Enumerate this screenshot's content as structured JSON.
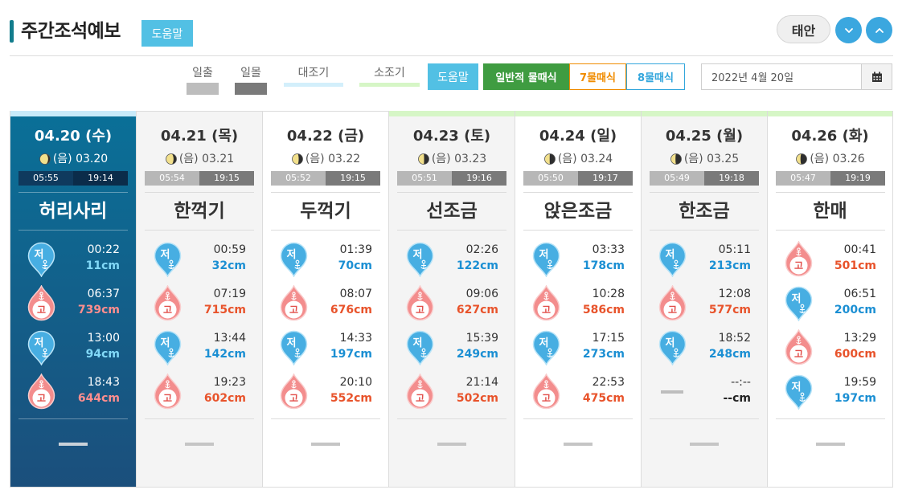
{
  "header": {
    "title": "주간조석예보",
    "help_label": "도움말",
    "region": "태안"
  },
  "colors": {
    "accent": "#127c8c",
    "help_button": "#52c0e4",
    "circle_button": "#3ba7df",
    "selected_column_top": "#0a7098",
    "selected_column_bottom": "#1b4f7c",
    "low_tide": "#1b8fd3",
    "high_tide": "#e8532b",
    "low_tide_selected": "#82d9f8",
    "high_tide_selected": "#ff8e8e"
  },
  "legend": [
    {
      "label": "일출",
      "color": "#bdbdbd"
    },
    {
      "label": "일몰",
      "color": "#7a7a7a"
    },
    {
      "label": "대조기",
      "color": "#d3effb"
    },
    {
      "label": "소조기",
      "color": "#d6f6c6"
    }
  ],
  "controls": {
    "help_label": "도움말",
    "modes": [
      {
        "label": "일반적 물때식",
        "active": true,
        "color": "#3f9c41"
      },
      {
        "label": "7물때식",
        "active": false,
        "color": "#f08c00"
      },
      {
        "label": "8물때식",
        "active": false,
        "color": "#33a6dc"
      }
    ],
    "date_value": "2022년 4월 20일"
  },
  "days": [
    {
      "date": "04.20 (수)",
      "lunar": "(음) 03.20",
      "moon_lit": 0.8,
      "sunrise": "05:55",
      "sunset": "19:14",
      "tide_name": "허리사리",
      "selected": true,
      "top_color": "#c8eaf9",
      "tides": [
        {
          "icon": "low-tide-icon",
          "label": "저",
          "time": "00:22",
          "height": "11cm"
        },
        {
          "icon": "high-tide-icon",
          "label": "고",
          "time": "06:37",
          "height": "739cm"
        },
        {
          "icon": "low-tide-icon",
          "label": "저",
          "time": "13:00",
          "height": "94cm"
        },
        {
          "icon": "high-tide-icon",
          "label": "고",
          "time": "18:43",
          "height": "644cm"
        }
      ]
    },
    {
      "date": "04.21 (목)",
      "lunar": "(음) 03.21",
      "moon_lit": 0.72,
      "sunrise": "05:54",
      "sunset": "19:15",
      "tide_name": "한꺽기",
      "selected": false,
      "top_color": "",
      "tides": [
        {
          "icon": "low-tide-icon",
          "label": "저",
          "time": "00:59",
          "height": "32cm"
        },
        {
          "icon": "high-tide-icon",
          "label": "고",
          "time": "07:19",
          "height": "715cm"
        },
        {
          "icon": "low-tide-icon",
          "label": "저",
          "time": "13:44",
          "height": "142cm"
        },
        {
          "icon": "high-tide-icon",
          "label": "고",
          "time": "19:23",
          "height": "602cm"
        }
      ]
    },
    {
      "date": "04.22 (금)",
      "lunar": "(음) 03.22",
      "moon_lit": 0.62,
      "sunrise": "05:52",
      "sunset": "19:15",
      "tide_name": "두꺽기",
      "selected": false,
      "top_color": "",
      "tides": [
        {
          "icon": "low-tide-icon",
          "label": "저",
          "time": "01:39",
          "height": "70cm"
        },
        {
          "icon": "high-tide-icon",
          "label": "고",
          "time": "08:07",
          "height": "676cm"
        },
        {
          "icon": "low-tide-icon",
          "label": "저",
          "time": "14:33",
          "height": "197cm"
        },
        {
          "icon": "high-tide-icon",
          "label": "고",
          "time": "20:10",
          "height": "552cm"
        }
      ]
    },
    {
      "date": "04.23 (토)",
      "lunar": "(음) 03.23",
      "moon_lit": 0.54,
      "sunrise": "05:51",
      "sunset": "19:16",
      "tide_name": "선조금",
      "selected": false,
      "top_color": "#d6f6c6",
      "tides": [
        {
          "icon": "low-tide-icon",
          "label": "저",
          "time": "02:26",
          "height": "122cm"
        },
        {
          "icon": "high-tide-icon",
          "label": "고",
          "time": "09:06",
          "height": "627cm"
        },
        {
          "icon": "low-tide-icon",
          "label": "저",
          "time": "15:39",
          "height": "249cm"
        },
        {
          "icon": "high-tide-icon",
          "label": "고",
          "time": "21:14",
          "height": "502cm"
        }
      ]
    },
    {
      "date": "04.24 (일)",
      "lunar": "(음) 03.24",
      "moon_lit": 0.48,
      "sunrise": "05:50",
      "sunset": "19:17",
      "tide_name": "앉은조금",
      "selected": false,
      "top_color": "#d6f6c6",
      "tides": [
        {
          "icon": "low-tide-icon",
          "label": "저",
          "time": "03:33",
          "height": "178cm"
        },
        {
          "icon": "high-tide-icon",
          "label": "고",
          "time": "10:28",
          "height": "586cm"
        },
        {
          "icon": "low-tide-icon",
          "label": "저",
          "time": "17:15",
          "height": "273cm"
        },
        {
          "icon": "high-tide-icon",
          "label": "고",
          "time": "22:53",
          "height": "475cm"
        }
      ]
    },
    {
      "date": "04.25 (월)",
      "lunar": "(음) 03.25",
      "moon_lit": 0.44,
      "sunrise": "05:49",
      "sunset": "19:18",
      "tide_name": "한조금",
      "selected": false,
      "top_color": "#d6f6c6",
      "tides": [
        {
          "icon": "low-tide-icon",
          "label": "저",
          "time": "05:11",
          "height": "213cm"
        },
        {
          "icon": "high-tide-icon",
          "label": "고",
          "time": "12:08",
          "height": "577cm"
        },
        {
          "icon": "low-tide-icon",
          "label": "저",
          "time": "18:52",
          "height": "248cm"
        },
        {
          "icon": "no-tide-dash-icon",
          "label": "",
          "time": "--:--",
          "height": "--cm"
        }
      ]
    },
    {
      "date": "04.26 (화)",
      "lunar": "(음) 03.26",
      "moon_lit": 0.4,
      "sunrise": "05:47",
      "sunset": "19:19",
      "tide_name": "한매",
      "selected": false,
      "top_color": "#d6f6c6",
      "tides": [
        {
          "icon": "high-tide-icon",
          "label": "고",
          "time": "00:41",
          "height": "501cm"
        },
        {
          "icon": "low-tide-icon",
          "label": "저",
          "time": "06:51",
          "height": "200cm"
        },
        {
          "icon": "high-tide-icon",
          "label": "고",
          "time": "13:29",
          "height": "600cm"
        },
        {
          "icon": "low-tide-icon",
          "label": "저",
          "time": "19:59",
          "height": "197cm"
        }
      ]
    }
  ]
}
